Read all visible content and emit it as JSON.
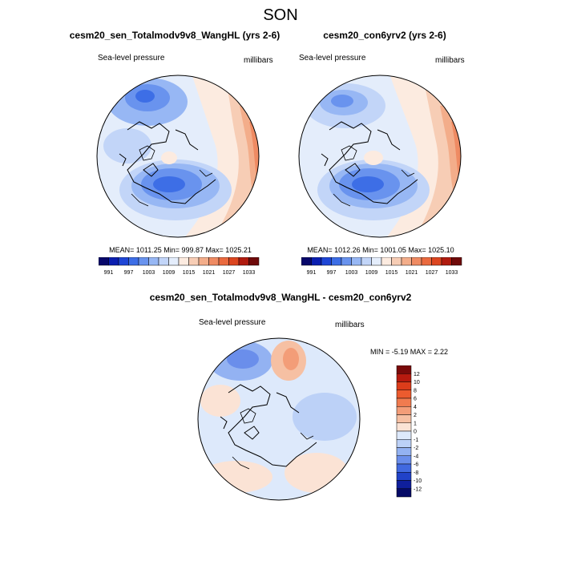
{
  "title": "SON",
  "panels": [
    {
      "title": "cesm20_sen_Totalmodv9v8_WangHL (yrs 2-6)",
      "left_label": "Sea-level pressure",
      "right_label": "millibars",
      "stats": "MEAN= 1011.25  Min= 999.87  Max= 1025.21"
    },
    {
      "title": "cesm20_con6yrv2 (yrs 2-6)",
      "left_label": "Sea-level pressure",
      "right_label": "millibars",
      "stats": "MEAN= 1012.26  Min= 1001.05  Max= 1025.10"
    },
    {
      "title": "cesm20_sen_Totalmodv9v8_WangHL - cesm20_con6yrv2",
      "left_label": "Sea-level pressure",
      "right_label": "millibars",
      "stats": "MIN =  -5.19 MAX =   2.22"
    }
  ],
  "colorbar_abs": {
    "labels": [
      "991",
      "997",
      "1003",
      "1009",
      "1015",
      "1021",
      "1027",
      "1033"
    ],
    "colors": [
      "#08086b",
      "#0b1fb0",
      "#1f46d6",
      "#3d6ee6",
      "#6993ee",
      "#97b7f4",
      "#c2d5f8",
      "#e4edfb",
      "#fcebe0",
      "#f7cdb5",
      "#f3ad8a",
      "#ef8b63",
      "#ea6a3f",
      "#dc4620",
      "#b01b0f",
      "#6f0a0a"
    ]
  },
  "colorbar_diff": {
    "labels": [
      "12",
      "10",
      "8",
      "6",
      "4",
      "2",
      "1",
      "0",
      "-1",
      "-2",
      "-4",
      "-6",
      "-8",
      "-10",
      "-12"
    ],
    "colors": [
      "#7a0a0a",
      "#b71a0f",
      "#dc3c1a",
      "#ec5b2e",
      "#f07b4f",
      "#f39d78",
      "#f6c0a3",
      "#fbe3d5",
      "#dde9fb",
      "#bcd1f7",
      "#93b2f2",
      "#6a8eeb",
      "#4169e0",
      "#2142c8",
      "#0f1f9c",
      "#050a66"
    ]
  }
}
